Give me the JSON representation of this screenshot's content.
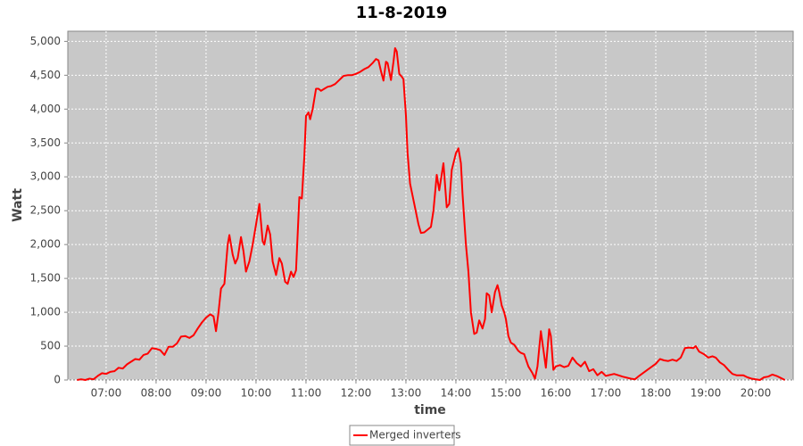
{
  "chart_data": {
    "type": "line",
    "title": "11-8-2019",
    "x_label": "time",
    "y_label": "Watt",
    "x": [
      "06:25",
      "06:30",
      "06:35",
      "06:40",
      "06:45",
      "06:50",
      "06:55",
      "07:00",
      "07:05",
      "07:10",
      "07:15",
      "07:20",
      "07:25",
      "07:30",
      "07:35",
      "07:40",
      "07:45",
      "07:50",
      "07:55",
      "08:00",
      "08:05",
      "08:10",
      "08:15",
      "08:20",
      "08:25",
      "08:30",
      "08:35",
      "08:40",
      "08:45",
      "08:50",
      "08:55",
      "09:00",
      "09:05",
      "09:09",
      "09:12",
      "09:15",
      "09:18",
      "09:22",
      "09:26",
      "09:28",
      "09:32",
      "09:35",
      "09:38",
      "09:42",
      "09:45",
      "09:48",
      "09:52",
      "09:56",
      "10:00",
      "10:04",
      "10:08",
      "10:10",
      "10:14",
      "10:17",
      "10:20",
      "10:24",
      "10:28",
      "10:31",
      "10:35",
      "10:38",
      "10:42",
      "10:45",
      "10:48",
      "10:52",
      "10:55",
      "10:58",
      "11:00",
      "11:03",
      "11:05",
      "11:08",
      "11:12",
      "11:15",
      "11:18",
      "11:22",
      "11:26",
      "11:30",
      "11:35",
      "11:40",
      "11:45",
      "11:50",
      "11:55",
      "12:00",
      "12:05",
      "12:10",
      "12:15",
      "12:20",
      "12:24",
      "12:27",
      "12:30",
      "12:33",
      "12:36",
      "12:38",
      "12:42",
      "12:45",
      "12:47",
      "12:49",
      "12:52",
      "12:55",
      "12:57",
      "13:00",
      "13:02",
      "13:05",
      "13:10",
      "13:15",
      "13:18",
      "13:22",
      "13:26",
      "13:30",
      "13:33",
      "13:37",
      "13:40",
      "13:45",
      "13:49",
      "13:52",
      "13:55",
      "14:00",
      "14:03",
      "14:06",
      "14:08",
      "14:12",
      "14:15",
      "14:18",
      "14:22",
      "14:25",
      "14:28",
      "14:32",
      "14:35",
      "14:37",
      "14:40",
      "14:43",
      "14:47",
      "14:50",
      "14:52",
      "14:55",
      "14:58",
      "15:00",
      "15:03",
      "15:06",
      "15:10",
      "15:15",
      "15:18",
      "15:22",
      "15:27",
      "15:32",
      "15:35",
      "15:38",
      "15:42",
      "15:45",
      "15:48",
      "15:52",
      "15:54",
      "15:57",
      "16:00",
      "16:05",
      "16:10",
      "16:15",
      "16:20",
      "16:25",
      "16:30",
      "16:35",
      "16:40",
      "16:45",
      "16:50",
      "16:55",
      "17:00",
      "17:10",
      "17:20",
      "17:30",
      "17:35",
      "17:40",
      "17:50",
      "18:00",
      "18:05",
      "18:10",
      "18:15",
      "18:20",
      "18:25",
      "18:30",
      "18:35",
      "18:40",
      "18:45",
      "18:48",
      "18:52",
      "18:58",
      "19:03",
      "19:08",
      "19:12",
      "19:17",
      "19:22",
      "19:27",
      "19:32",
      "19:37",
      "19:45",
      "19:50",
      "19:55",
      "20:00",
      "20:05",
      "20:10",
      "20:15",
      "20:20",
      "20:25",
      "20:30",
      "20:35"
    ],
    "series": [
      {
        "name": "Merged inverters",
        "color": "#ff0000",
        "values": [
          0,
          10,
          0,
          20,
          10,
          60,
          100,
          90,
          120,
          130,
          180,
          170,
          230,
          270,
          310,
          300,
          370,
          390,
          470,
          460,
          440,
          370,
          490,
          490,
          540,
          640,
          650,
          620,
          660,
          760,
          850,
          920,
          970,
          940,
          720,
          1000,
          1350,
          1420,
          2000,
          2140,
          1850,
          1720,
          1800,
          2110,
          1900,
          1600,
          1750,
          2000,
          2300,
          2600,
          2050,
          2000,
          2280,
          2150,
          1750,
          1550,
          1800,
          1720,
          1450,
          1420,
          1600,
          1520,
          1620,
          2700,
          2680,
          3300,
          3900,
          3950,
          3850,
          4000,
          4300,
          4300,
          4270,
          4300,
          4330,
          4340,
          4370,
          4430,
          4490,
          4500,
          4500,
          4520,
          4550,
          4590,
          4620,
          4680,
          4740,
          4720,
          4560,
          4420,
          4700,
          4680,
          4430,
          4700,
          4900,
          4850,
          4520,
          4480,
          4440,
          3900,
          3350,
          2900,
          2600,
          2300,
          2170,
          2180,
          2220,
          2260,
          2500,
          3030,
          2800,
          3200,
          2550,
          2600,
          3100,
          3350,
          3420,
          3200,
          2750,
          2000,
          1600,
          1000,
          680,
          700,
          880,
          760,
          900,
          1280,
          1250,
          1000,
          1300,
          1400,
          1300,
          1100,
          1000,
          900,
          650,
          550,
          520,
          430,
          400,
          380,
          200,
          100,
          20,
          200,
          720,
          450,
          180,
          750,
          650,
          150,
          200,
          220,
          190,
          210,
          330,
          250,
          200,
          270,
          130,
          160,
          70,
          120,
          60,
          90,
          50,
          20,
          10,
          60,
          150,
          240,
          310,
          290,
          280,
          300,
          280,
          330,
          470,
          480,
          470,
          500,
          420,
          380,
          330,
          350,
          330,
          260,
          220,
          150,
          90,
          70,
          70,
          40,
          20,
          10,
          0,
          40,
          50,
          80,
          60,
          30,
          0
        ]
      }
    ],
    "xlim": [
      "06:14",
      "20:45"
    ],
    "xticks": [
      "07:00",
      "08:00",
      "09:00",
      "10:00",
      "11:00",
      "12:00",
      "13:00",
      "14:00",
      "15:00",
      "16:00",
      "17:00",
      "18:00",
      "19:00",
      "20:00"
    ],
    "ylim": [
      0,
      5150
    ],
    "yticks": [
      0,
      500,
      {
        "value": 1000,
        "label": "1,000"
      },
      {
        "value": 1500,
        "label": "1,500"
      },
      {
        "value": 2000,
        "label": "2,000"
      },
      {
        "value": 2500,
        "label": "2,500"
      },
      {
        "value": 3000,
        "label": "3,000"
      },
      {
        "value": 3500,
        "label": "3,500"
      },
      {
        "value": 4000,
        "label": "4,000"
      },
      {
        "value": 4500,
        "label": "4,500"
      },
      {
        "value": 5000,
        "label": "5,000"
      }
    ],
    "grid": true,
    "legend": "bottom"
  }
}
